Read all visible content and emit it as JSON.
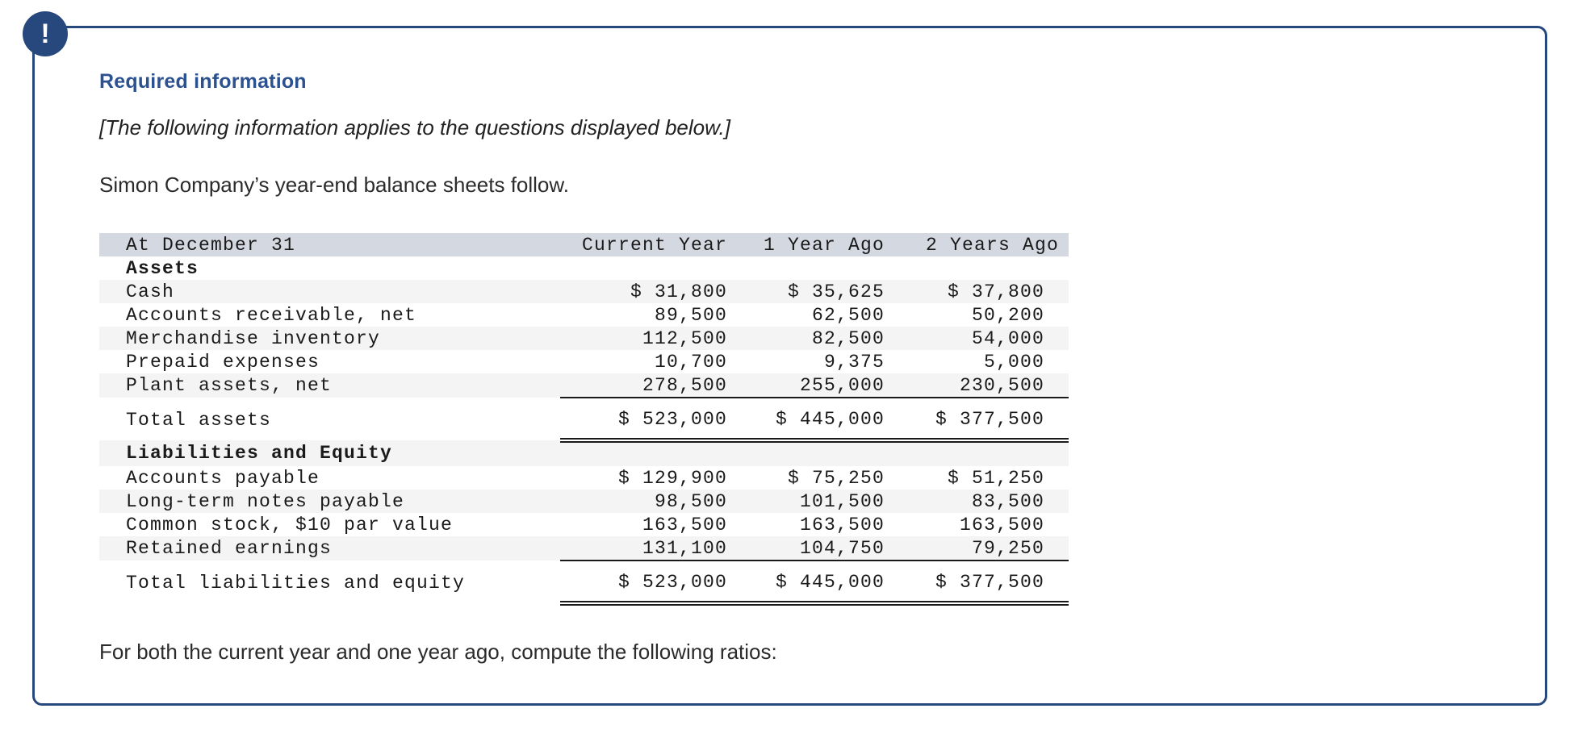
{
  "alert": {
    "icon_glyph": "!"
  },
  "header": {
    "title": "Required information"
  },
  "intro": {
    "note": "[The following information applies to the questions displayed below.]",
    "description": "Simon Company’s year-end balance sheets follow."
  },
  "table": {
    "columns": [
      "At December 31",
      "Current Year",
      "1 Year Ago",
      "2 Years Ago"
    ],
    "rows": [
      {
        "label": "Assets",
        "type": "section",
        "shaded": false,
        "values": [
          "",
          "",
          ""
        ]
      },
      {
        "label": "Cash",
        "type": "data",
        "shaded": true,
        "values": [
          "$ 31,800",
          "$ 35,625",
          "$ 37,800"
        ]
      },
      {
        "label": "Accounts receivable, net",
        "type": "data",
        "shaded": false,
        "values": [
          "89,500",
          "62,500",
          "50,200"
        ]
      },
      {
        "label": "Merchandise inventory",
        "type": "data",
        "shaded": true,
        "values": [
          "112,500",
          "82,500",
          "54,000"
        ]
      },
      {
        "label": "Prepaid expenses",
        "type": "data",
        "shaded": false,
        "values": [
          "10,700",
          "9,375",
          "5,000"
        ]
      },
      {
        "label": "Plant assets, net",
        "type": "data",
        "shaded": true,
        "rule": "single",
        "values": [
          "278,500",
          "255,000",
          "230,500"
        ]
      },
      {
        "label": "Total assets",
        "type": "total",
        "shaded": false,
        "rule": "double",
        "values": [
          "$ 523,000",
          "$ 445,000",
          "$ 377,500"
        ]
      },
      {
        "label": "Liabilities and Equity",
        "type": "section",
        "shaded": true,
        "values": [
          "",
          "",
          ""
        ]
      },
      {
        "label": "Accounts payable",
        "type": "data",
        "shaded": false,
        "values": [
          "$ 129,900",
          "$ 75,250",
          "$ 51,250"
        ]
      },
      {
        "label": "Long-term notes payable",
        "type": "data",
        "shaded": true,
        "values": [
          "98,500",
          "101,500",
          "83,500"
        ]
      },
      {
        "label": "Common stock, $10 par value",
        "type": "data",
        "shaded": false,
        "values": [
          "163,500",
          "163,500",
          "163,500"
        ]
      },
      {
        "label": "Retained earnings",
        "type": "data",
        "shaded": true,
        "rule": "single",
        "values": [
          "131,100",
          "104,750",
          "79,250"
        ]
      },
      {
        "label": "Total liabilities and equity",
        "type": "total",
        "shaded": false,
        "rule": "double",
        "values": [
          "$ 523,000",
          "$ 445,000",
          "$ 377,500"
        ]
      }
    ]
  },
  "footer": {
    "instruction": "For both the current year and one year ago, compute the following ratios:"
  },
  "colors": {
    "accent_navy": "#27487d",
    "heading_blue": "#2b5191",
    "table_header_bg": "#d4d8e1",
    "row_shade_bg": "#f4f4f4"
  }
}
